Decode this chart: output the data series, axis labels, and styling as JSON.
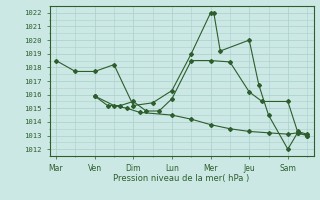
{
  "background_color": "#cce8e4",
  "grid_color": "#aacfcb",
  "line_color": "#2d5e2d",
  "title": "Pression niveau de la mer( hPa )",
  "ylim": [
    1011.5,
    1022.5
  ],
  "yticks": [
    1012,
    1013,
    1014,
    1015,
    1016,
    1017,
    1018,
    1019,
    1020,
    1021,
    1022
  ],
  "xtick_labels": [
    "Mar",
    "Ven",
    "Dim",
    "Lun",
    "Mer",
    "Jeu",
    "Sam"
  ],
  "xtick_positions": [
    0,
    12,
    24,
    36,
    48,
    60,
    72
  ],
  "series1_x": [
    0,
    6,
    12,
    18,
    24,
    30,
    36,
    42,
    48,
    49,
    51,
    60,
    63,
    66,
    72,
    75,
    78
  ],
  "series1_y": [
    1018.5,
    1017.7,
    1017.7,
    1018.2,
    1015.2,
    1015.4,
    1016.3,
    1019.0,
    1022.0,
    1022.0,
    1019.2,
    1020.0,
    1016.7,
    1014.5,
    1012.0,
    1013.2,
    1013.0
  ],
  "series2_x": [
    12,
    16,
    20,
    24,
    28,
    32,
    36,
    42,
    48,
    54,
    60,
    64,
    72,
    75,
    78
  ],
  "series2_y": [
    1015.9,
    1015.2,
    1015.2,
    1015.5,
    1014.8,
    1014.8,
    1015.7,
    1018.5,
    1018.5,
    1018.4,
    1016.2,
    1015.5,
    1015.5,
    1013.3,
    1013.1
  ],
  "series3_x": [
    12,
    18,
    22,
    26,
    36,
    42,
    48,
    54,
    60,
    66,
    72,
    75,
    78
  ],
  "series3_y": [
    1015.9,
    1015.2,
    1015.0,
    1014.7,
    1014.5,
    1014.2,
    1013.8,
    1013.5,
    1013.3,
    1013.2,
    1013.1,
    1013.2,
    1013.0
  ]
}
